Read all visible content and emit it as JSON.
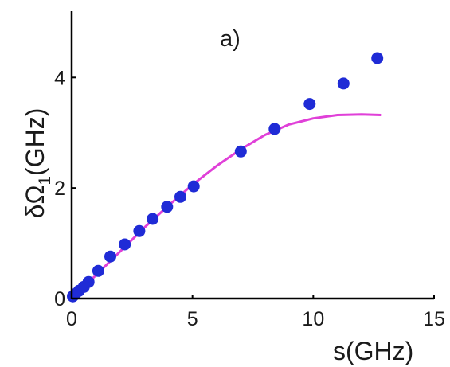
{
  "chart_data": {
    "type": "scatter",
    "title": "",
    "panel_label": "a)",
    "xlabel": "s(GHz)",
    "ylabel": {
      "prefix": "δΩ",
      "sub": "1",
      "suffix": "(GHz)"
    },
    "xlim": [
      0,
      15
    ],
    "ylim": [
      0,
      5.2
    ],
    "xticks": [
      0,
      5,
      10,
      15
    ],
    "yticks": [
      0,
      2,
      4
    ],
    "grid": false,
    "colors": {
      "points": "#1f2bd6",
      "line": "#e040d8",
      "axis": "#000000"
    },
    "series": [
      {
        "kind": "points",
        "x": [
          0.05,
          0.15,
          0.3,
          0.5,
          0.7,
          1.1,
          1.6,
          2.2,
          2.8,
          3.35,
          3.95,
          4.5,
          5.05,
          7.0,
          8.4,
          9.85,
          11.25,
          12.65
        ],
        "y": [
          0.04,
          0.08,
          0.14,
          0.21,
          0.3,
          0.5,
          0.76,
          0.98,
          1.22,
          1.44,
          1.66,
          1.84,
          2.03,
          2.66,
          3.07,
          3.52,
          3.89,
          4.35
        ]
      },
      {
        "kind": "line",
        "x": [
          0,
          1,
          2,
          3,
          4,
          5,
          6,
          7,
          8,
          9,
          10,
          11,
          12,
          12.8
        ],
        "y": [
          0,
          0.42,
          0.85,
          1.28,
          1.68,
          2.06,
          2.4,
          2.7,
          2.96,
          3.15,
          3.26,
          3.32,
          3.33,
          3.32
        ]
      }
    ]
  }
}
